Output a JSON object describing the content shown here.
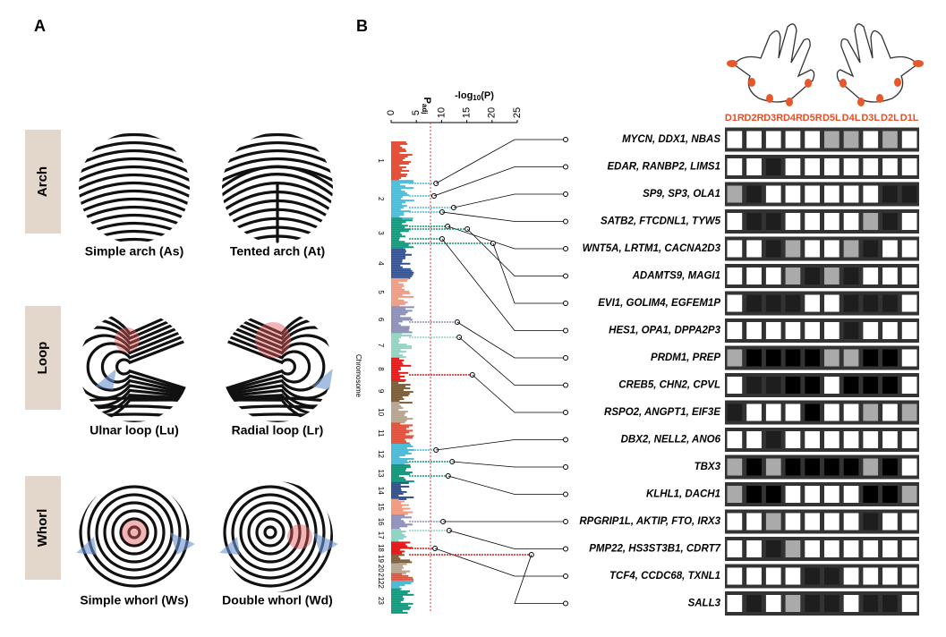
{
  "panels": {
    "a": "A",
    "b": "B"
  },
  "pattern_groups": [
    {
      "name": "Arch",
      "patterns": [
        "Simple arch (As)",
        "Tented arch (At)"
      ]
    },
    {
      "name": "Loop",
      "patterns": [
        "Ulnar loop (Lu)",
        "Radial loop (Lr)"
      ]
    },
    {
      "name": "Whorl",
      "patterns": [
        "Simple whorl (Ws)",
        "Double whorl (Wd)"
      ]
    }
  ],
  "manhattan": {
    "axis_label": {
      "main": "-log",
      "sub": "10",
      "end": "(P)"
    },
    "xlim": [
      0,
      25
    ],
    "xticks": [
      0,
      5,
      10,
      15,
      20,
      25
    ],
    "threshold": 7.8,
    "threshold_label": {
      "main": "P",
      "sub": "adj"
    },
    "y_label": "Chromosome",
    "chromosomes": [
      "1",
      "2",
      "3",
      "4",
      "5",
      "6",
      "7",
      "8",
      "9",
      "10",
      "11",
      "12",
      "13",
      "14",
      "15",
      "16",
      "17",
      "18",
      "19",
      "20",
      "21",
      "22",
      "23"
    ]
  },
  "fingers": [
    "D1R",
    "D2R",
    "D3R",
    "D4R",
    "D5R",
    "D5L",
    "D4L",
    "D3L",
    "D2L",
    "D1L"
  ],
  "loci": [
    {
      "genes": "MYCN, DDX1, NBAS",
      "log_p": 8.9,
      "levels": [
        0,
        0,
        0,
        0,
        0,
        1,
        1,
        0,
        1,
        0
      ]
    },
    {
      "genes": "EDAR, RANBP2, LIMS1",
      "log_p": 8.5,
      "levels": [
        0,
        0,
        2,
        0,
        0,
        0,
        0,
        0,
        0,
        0
      ]
    },
    {
      "genes": "SP9, SP3, OLA1",
      "log_p": 12.4,
      "levels": [
        1,
        2,
        0,
        0,
        0,
        0,
        0,
        0,
        2,
        2
      ]
    },
    {
      "genes": "SATB2, FTCDNL1, TYW5",
      "log_p": 10.1,
      "levels": [
        0,
        2,
        2,
        0,
        0,
        0,
        0,
        1,
        2,
        0
      ]
    },
    {
      "genes": "WNT5A, LRTM1, CACNA2D3",
      "log_p": 11.2,
      "levels": [
        0,
        0,
        2,
        1,
        0,
        0,
        1,
        2,
        0,
        0
      ]
    },
    {
      "genes": "ADAMTS9, MAGI1",
      "log_p": 15.1,
      "levels": [
        0,
        0,
        0,
        1,
        2,
        1,
        2,
        0,
        0,
        0
      ]
    },
    {
      "genes": "EVI1, GOLIM4, EGFEM1P",
      "log_p": 20.2,
      "levels": [
        0,
        2,
        2,
        2,
        0,
        0,
        2,
        2,
        2,
        0
      ]
    },
    {
      "genes": "HES1, OPA1, DPPA2P3",
      "log_p": 10.1,
      "levels": [
        0,
        0,
        0,
        0,
        0,
        0,
        2,
        0,
        0,
        0
      ]
    },
    {
      "genes": "PRDM1, PREP",
      "log_p": 13.1,
      "levels": [
        1,
        3,
        3,
        3,
        3,
        1,
        1,
        3,
        3,
        0
      ]
    },
    {
      "genes": "CREB5, CHN2, CPVL",
      "log_p": 13.5,
      "levels": [
        0,
        2,
        2,
        3,
        3,
        0,
        3,
        3,
        3,
        0
      ]
    },
    {
      "genes": "RSPO2, ANGPT1, EIF3E",
      "log_p": 16.1,
      "levels": [
        2,
        0,
        0,
        0,
        3,
        0,
        0,
        1,
        0,
        1
      ]
    },
    {
      "genes": "DBX2, NELL2, ANO6",
      "log_p": 8.9,
      "levels": [
        0,
        0,
        2,
        0,
        0,
        0,
        0,
        0,
        0,
        0
      ]
    },
    {
      "genes": "TBX3",
      "log_p": 12.1,
      "levels": [
        1,
        3,
        1,
        3,
        3,
        3,
        3,
        1,
        3,
        0
      ]
    },
    {
      "genes": "KLHL1, DACH1",
      "log_p": 11.3,
      "levels": [
        1,
        3,
        3,
        0,
        0,
        0,
        0,
        3,
        3,
        1
      ]
    },
    {
      "genes": "RPGRIP1L, AKTIP, FTO, IRX3",
      "log_p": 10.3,
      "levels": [
        0,
        0,
        1,
        0,
        0,
        0,
        0,
        2,
        0,
        0
      ]
    },
    {
      "genes": "PMP22, HS3ST3B1, CDRT7",
      "log_p": 11.5,
      "levels": [
        0,
        0,
        2,
        1,
        0,
        0,
        0,
        0,
        0,
        0
      ]
    },
    {
      "genes": "TCF4, CCDC68, TXNL1",
      "log_p": 8.7,
      "levels": [
        0,
        0,
        0,
        0,
        2,
        2,
        0,
        0,
        0,
        0
      ]
    },
    {
      "genes": "SALL3",
      "log_p": 27.8,
      "levels": [
        0,
        2,
        0,
        1,
        2,
        2,
        0,
        2,
        2,
        0
      ]
    }
  ]
}
